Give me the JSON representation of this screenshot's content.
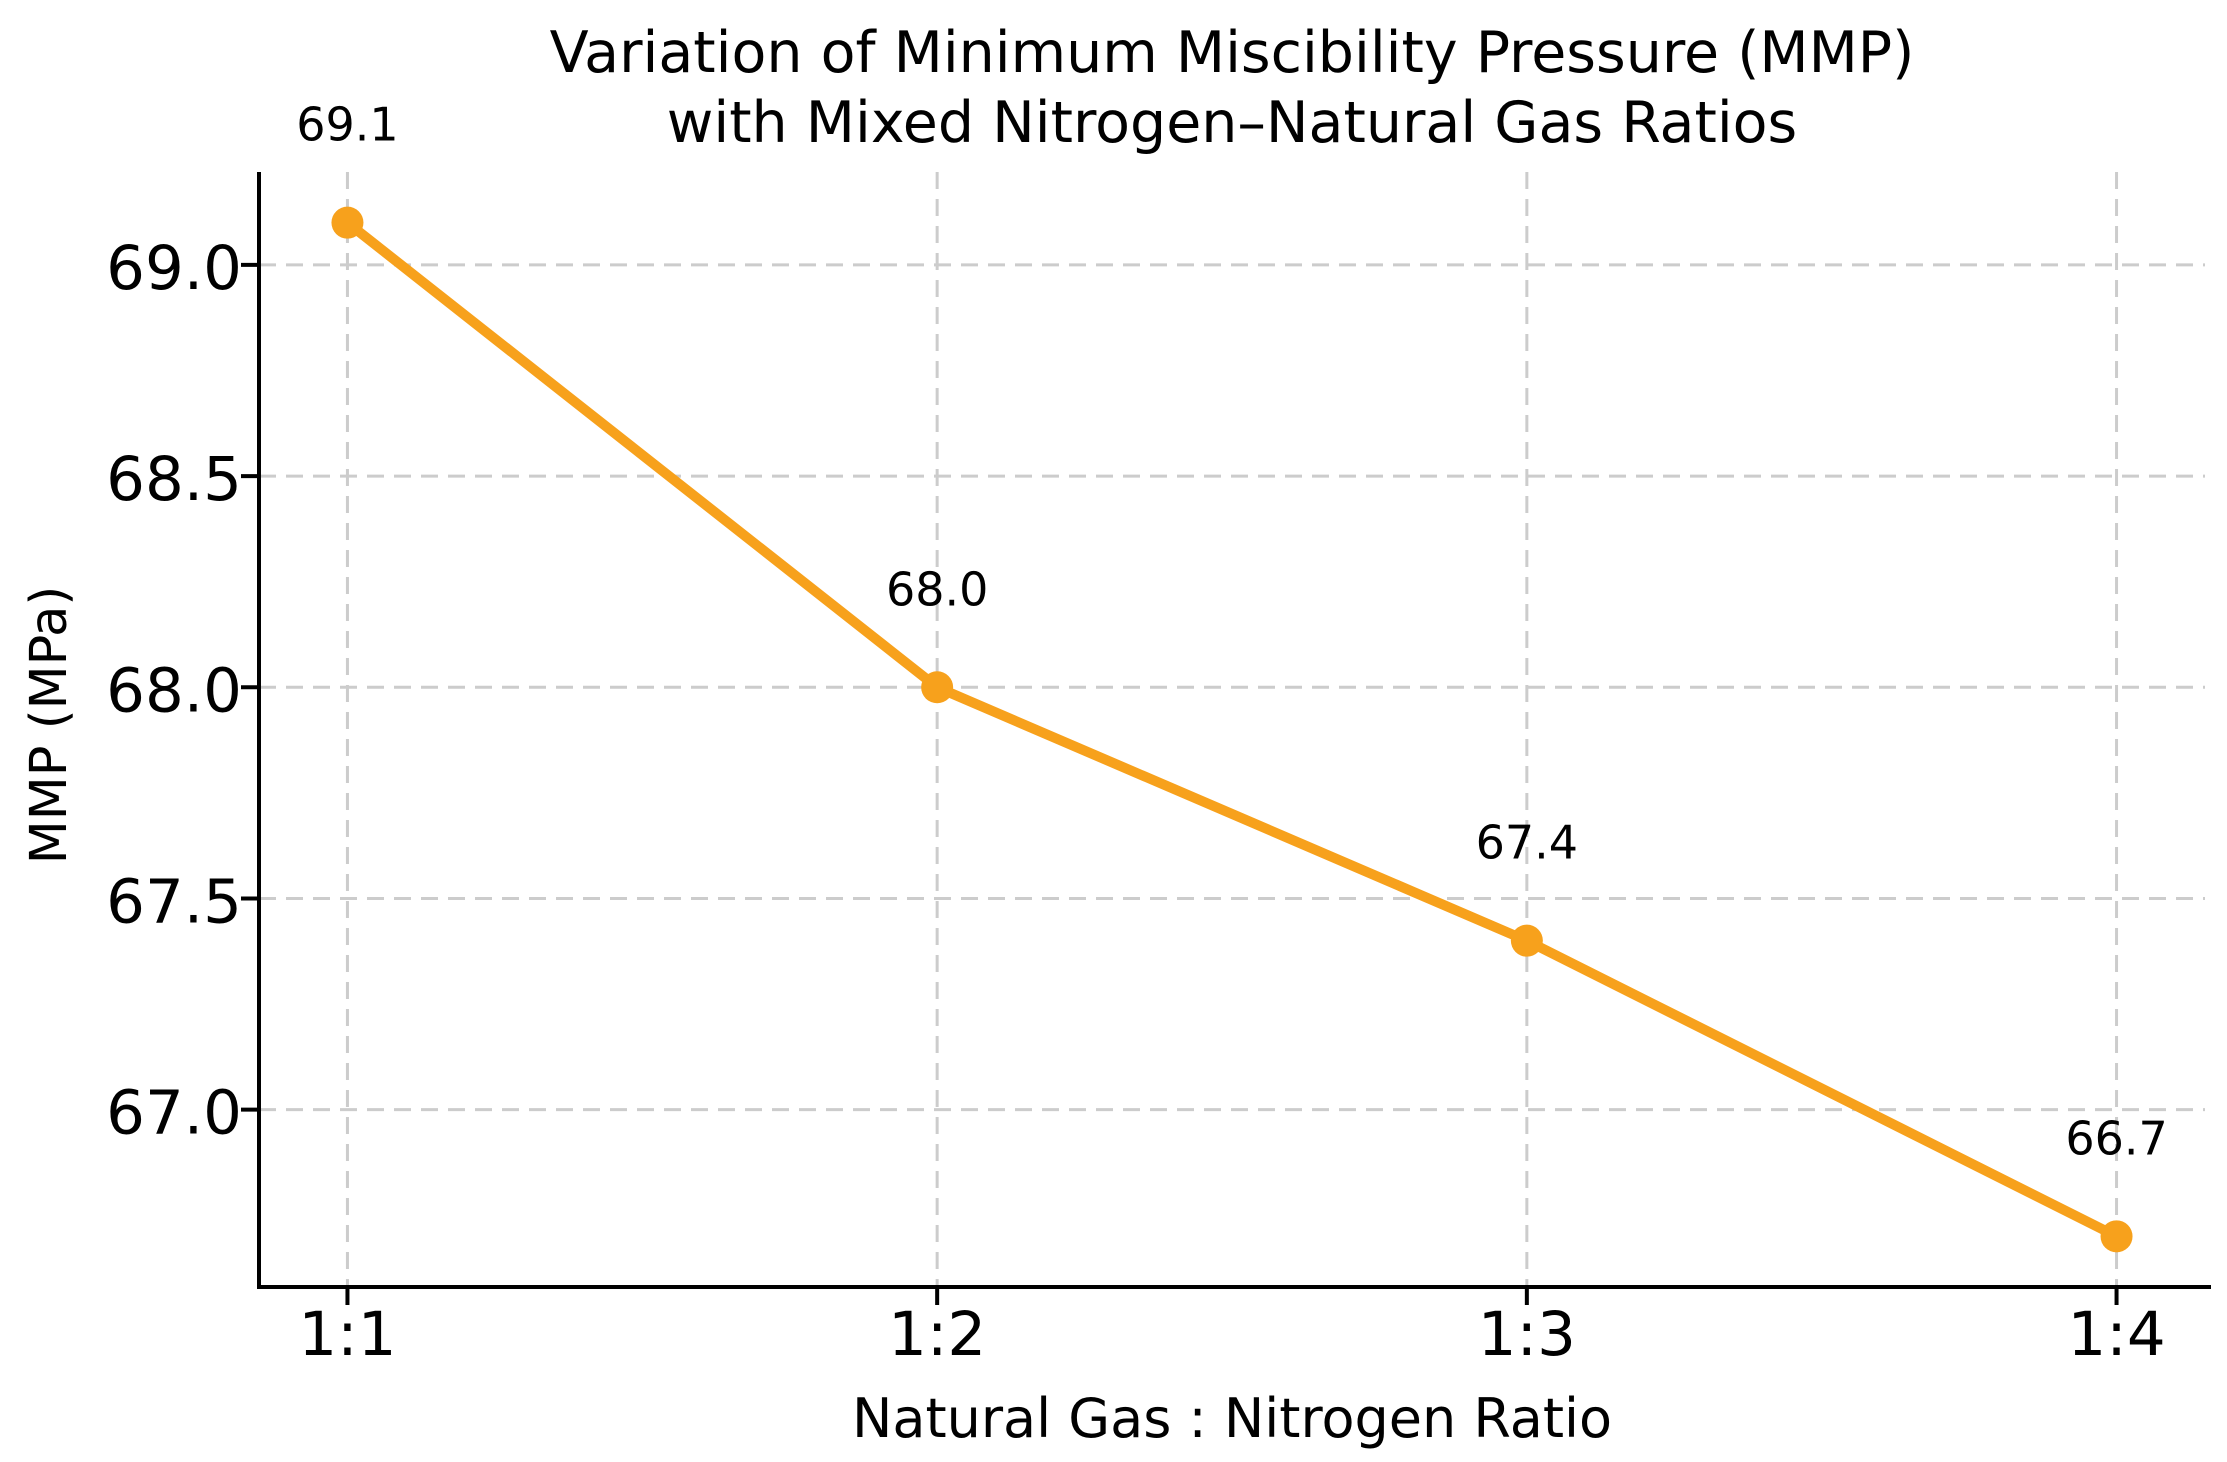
{
  "figure": {
    "kind": "matplotlib-style line chart"
  },
  "chart_data": {
    "type": "line",
    "title": "Variation of Minimum Miscibility Pressure (MMP) with Mixed Nitrogen–Natural Gas Ratios",
    "title_lines": [
      "Variation of Minimum Miscibility Pressure (MMP)",
      "with Mixed Nitrogen–Natural Gas Ratios"
    ],
    "xlabel": "Natural Gas : Nitrogen Ratio",
    "ylabel": "MMP (MPa)",
    "categories": [
      "1:1",
      "1:2",
      "1:3",
      "1:4"
    ],
    "series": [
      {
        "name": "MMP",
        "values": [
          69.1,
          68.0,
          67.4,
          66.7
        ]
      }
    ],
    "data_labels": [
      "69.1",
      "68.0",
      "67.4",
      "66.7"
    ],
    "yticks": [
      67.0,
      67.5,
      68.0,
      68.5,
      69.0
    ],
    "ytick_labels": [
      "67.0",
      "67.5",
      "68.0",
      "68.5",
      "69.0"
    ],
    "ylim": [
      66.58,
      69.22
    ],
    "xlim": [
      -0.15,
      3.15
    ],
    "grid": true,
    "grid_style": "dashed",
    "legend_position": "none",
    "marker": "circle",
    "colors": {
      "line": "#F7A11C",
      "marker": "#F7A11C",
      "grid": "#cccccc",
      "axis": "#000000",
      "text": "#000000",
      "background": "#ffffff"
    }
  }
}
